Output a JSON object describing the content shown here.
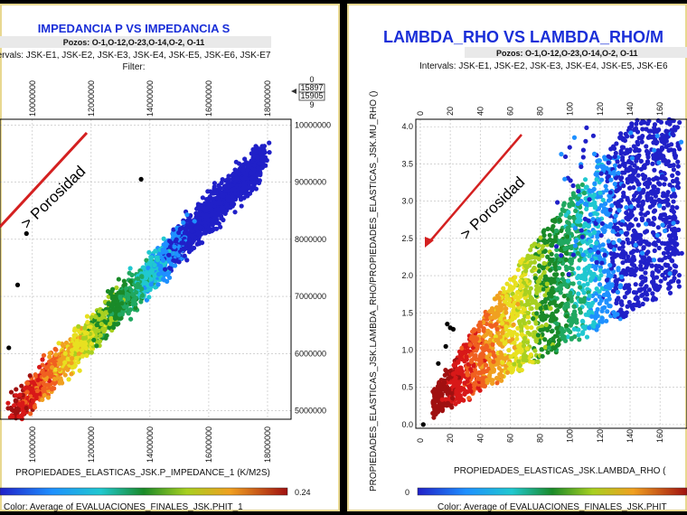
{
  "colors": {
    "accent_title": "#1a2fd8",
    "arrow": "#d42020",
    "panel_border": "#e8d890"
  },
  "left": {
    "title": "IMPEDANCIA P VS IMPEDANCIA S",
    "wells": "Pozos:  O-1,O-12,O-23,O-14,O-2, O-11",
    "intervals": "ervals: JSK-E1, JSK-E2, JSK-E3, JSK-E4, JSK-E5, JSK-E6, JSK-E7",
    "filter": "Filter:",
    "filter_box": {
      "top": "0",
      "v1": "15897",
      "v2": "15905",
      "bottom": "9"
    },
    "annotation": "> Porosidad",
    "colorbar_max": "0.24",
    "color_label": "Color: Average of EVALUACIONES_FINALES_JSK.PHIT_1"
  },
  "right": {
    "title": "LAMBDA_RHO VS LAMBDA_RHO/M",
    "wells": "Pozos:  O-1,O-12,O-23,O-14,O-2, O-11",
    "intervals": "Intervals: JSK-E1, JSK-E2, JSK-E3, JSK-E4, JSK-E5, JSK-E6",
    "annotation": "> Porosidad",
    "colorbar_min": "0",
    "color_label": "Color: Average of EVALUACIONES_FINALES_JSK.PHIT"
  },
  "chart_data": [
    {
      "type": "scatter",
      "title": "IMPEDANCIA P VS IMPEDANCIA S",
      "xlabel": "PROPIEDADES_ELASTICAS_JSK.P_IMPEDANCE_1 (K/M2S)",
      "ylabel": "",
      "x_ticks": [
        "10000000",
        "12000000",
        "14000000",
        "16000000",
        "18000000"
      ],
      "y_ticks": [
        "5000000",
        "6000000",
        "7000000",
        "8000000",
        "9000000",
        "10000000"
      ],
      "xlim": [
        8900000,
        18800000
      ],
      "ylim": [
        4850000,
        10100000
      ],
      "color_variable": "EVALUACIONES_FINALES_JSK.PHIT_1",
      "color_range": [
        0,
        0.24
      ],
      "colormap": "rainbow (high porosity red, low porosity blue)",
      "grid": true
    },
    {
      "type": "scatter",
      "title": "LAMBDA_RHO VS LAMBDA_RHO/M",
      "xlabel": "PROPIEDADES_ELASTICAS_JSK.LAMBDA_RHO (",
      "ylabel": "PROPIEDADES_ELASTICAS_JSK.LAMBDA_RHO/PROPIEDADES_ELASTICAS_JSK.MU_RHO ()",
      "x_ticks": [
        "0",
        "20",
        "40",
        "60",
        "80",
        "100",
        "120",
        "140",
        "160"
      ],
      "y_ticks": [
        "0.0",
        "0.5",
        "1.0",
        "1.5",
        "2.0",
        "2.5",
        "3.0",
        "3.5",
        "4.0"
      ],
      "xlim": [
        -3,
        178
      ],
      "ylim": [
        -0.05,
        4.1
      ],
      "color_variable": "EVALUACIONES_FINALES_JSK.PHIT",
      "colormap": "rainbow (high porosity red, low porosity blue)",
      "grid": true
    }
  ]
}
